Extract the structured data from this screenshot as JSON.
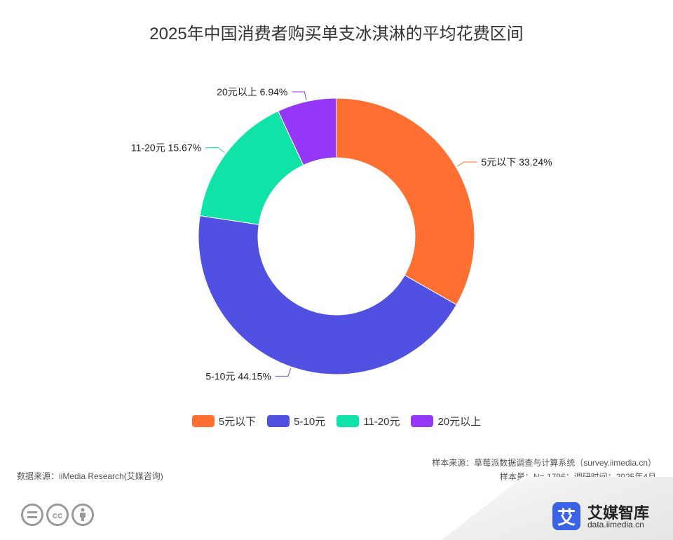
{
  "chart_data": {
    "type": "pie",
    "title": "2025年中国消费者购买单支冰淇淋的平均花费区间",
    "categories": [
      "5元以下",
      "5-10元",
      "11-20元",
      "20元以上"
    ],
    "values": [
      33.24,
      44.15,
      15.67,
      6.94
    ],
    "data_labels": [
      "5元以下 33.24%",
      "5-10元 44.15%",
      "11-20元 15.67%",
      "20元以上 6.94%"
    ],
    "colors": [
      "#ff6f31",
      "#5050e3",
      "#10e3a8",
      "#9437f6"
    ],
    "donut": true,
    "legend_position": "bottom"
  },
  "footer": {
    "data_source": "数据来源：iiMedia Research(艾媒咨询)",
    "sample_source": "样本来源：草莓派数据调查与计算系统（survey.iimedia.cn）",
    "sample_info": "样本量：N= 1796；调研时间：2025年4月"
  },
  "branding": {
    "logo_glyph": "艾",
    "name": "艾媒智库",
    "url": "data.iimedia.cn",
    "cc_icons": [
      "cc-equals-icon",
      "cc-icon",
      "cc-person-icon"
    ]
  }
}
